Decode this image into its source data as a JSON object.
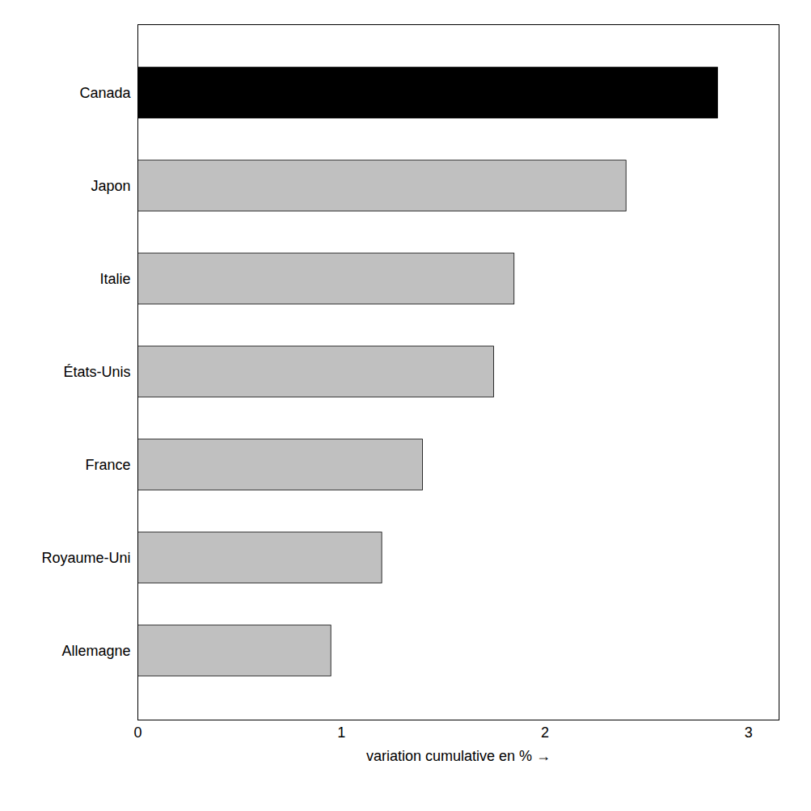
{
  "chart_data": {
    "type": "bar",
    "orientation": "horizontal",
    "categories": [
      "Allemagne",
      "Royaume-Uni",
      "France",
      "États-Unis",
      "Italie",
      "Japon",
      "Canada"
    ],
    "values": [
      0.95,
      1.2,
      1.4,
      1.75,
      1.85,
      2.4,
      2.85
    ],
    "colors": [
      "#c0c0c0",
      "#c0c0c0",
      "#c0c0c0",
      "#c0c0c0",
      "#c0c0c0",
      "#c0c0c0",
      "#000000"
    ],
    "xlabel": "variation cumulative en %",
    "xlim": [
      0,
      3.15
    ],
    "xticks": [
      0,
      1,
      2,
      3
    ],
    "grid": false
  }
}
